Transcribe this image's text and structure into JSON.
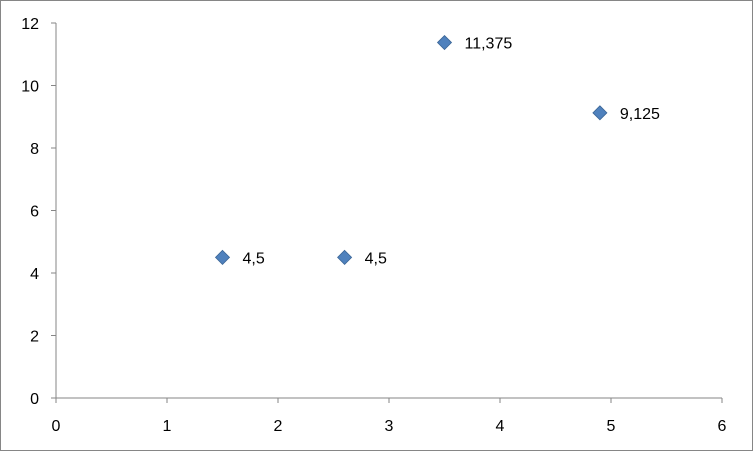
{
  "chart_data": {
    "type": "scatter",
    "title": "",
    "xlabel": "",
    "ylabel": "",
    "xlim": [
      0,
      6
    ],
    "ylim": [
      0,
      12
    ],
    "x_ticks": [
      0,
      1,
      2,
      3,
      4,
      5,
      6
    ],
    "y_ticks": [
      0,
      2,
      4,
      6,
      8,
      10,
      12
    ],
    "x_tick_labels": [
      "0",
      "1",
      "2",
      "3",
      "4",
      "5",
      "6"
    ],
    "y_tick_labels": [
      "0",
      "2",
      "4",
      "6",
      "8",
      "10",
      "12"
    ],
    "grid": false,
    "legend": "none",
    "marker": "diamond",
    "marker_color": "#4F81BD",
    "series": [
      {
        "points": [
          {
            "x": 1.5,
            "y": 4.5,
            "label": "4,5"
          },
          {
            "x": 2.6,
            "y": 4.5,
            "label": "4,5"
          },
          {
            "x": 3.5,
            "y": 11.375,
            "label": "11,375"
          },
          {
            "x": 4.9,
            "y": 9.125,
            "label": "9,125"
          }
        ]
      }
    ]
  }
}
